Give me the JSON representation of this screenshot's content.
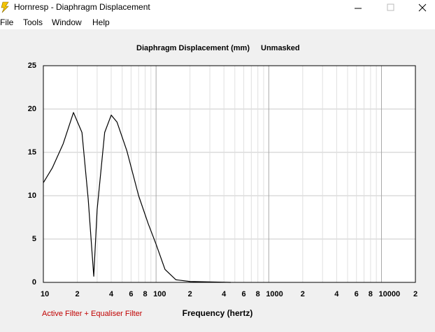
{
  "window": {
    "title": "Hornresp - Diaphragm Displacement"
  },
  "menu": [
    "File",
    "Tools",
    "Window",
    "Help"
  ],
  "filter_note": "Active Filter + Equaliser Filter",
  "chart_data": {
    "type": "line",
    "title": "Diaphragm Displacement (mm)",
    "subtitle": "Unmasked",
    "x_label": "Frequency (hertz)",
    "xscale": "log",
    "xlim": [
      10,
      20000
    ],
    "ylim": [
      0,
      25
    ],
    "yticks": [
      0,
      5,
      10,
      15,
      20,
      25
    ],
    "xticks": [
      10,
      {
        "value": 20,
        "label": "2"
      },
      {
        "value": 40,
        "label": "4"
      },
      {
        "value": 60,
        "label": "6"
      },
      {
        "value": 80,
        "label": "8"
      },
      100,
      {
        "value": 200,
        "label": "2"
      },
      {
        "value": 400,
        "label": "4"
      },
      {
        "value": 600,
        "label": "6"
      },
      {
        "value": 800,
        "label": "8"
      },
      1000,
      {
        "value": 2000,
        "label": "2"
      },
      {
        "value": 4000,
        "label": "4"
      },
      {
        "value": 6000,
        "label": "6"
      },
      {
        "value": 8000,
        "label": "8"
      },
      10000,
      {
        "value": 20000,
        "label": "2"
      }
    ],
    "xgrid": [
      30,
      50,
      70,
      90,
      300,
      500,
      700,
      900,
      3000,
      5000,
      7000,
      9000
    ],
    "grid": true,
    "series": [
      {
        "color": "#000000",
        "x": [
          10,
          12,
          15,
          18.5,
          22,
          25,
          28,
          30,
          35,
          40,
          45,
          55,
          70,
          85,
          100,
          120,
          150,
          200,
          460
        ],
        "values": [
          11.5,
          13.2,
          16,
          19.6,
          17.3,
          9.6,
          0.7,
          8.4,
          17.3,
          19.3,
          18.5,
          15.2,
          10,
          6.8,
          4.4,
          1.5,
          0.3,
          0.1,
          0
        ]
      }
    ]
  }
}
